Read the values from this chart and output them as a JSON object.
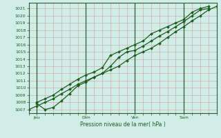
{
  "xlabel": "Pression niveau de la mer( hPa )",
  "ylim": [
    1006.5,
    1021.8
  ],
  "yticks": [
    1007,
    1008,
    1009,
    1010,
    1011,
    1012,
    1013,
    1014,
    1015,
    1016,
    1017,
    1018,
    1019,
    1020,
    1021
  ],
  "bg_color": "#d0ede8",
  "grid_color": "#c8a0a0",
  "line_color": "#1a5c1a",
  "xtick_labels": [
    "Jeu",
    "Dim",
    "Ven",
    "Sam"
  ],
  "xtick_positions": [
    0.5,
    3.5,
    6.5,
    9.5
  ],
  "xmin": 0.0,
  "xmax": 11.5,
  "vline_positions": [
    0.5,
    3.5,
    6.5,
    9.5
  ],
  "line1_x": [
    0.0,
    0.5,
    1.0,
    1.5,
    2.0,
    2.5,
    3.0,
    3.5,
    4.0,
    4.5,
    5.0,
    5.5,
    6.0,
    6.5,
    7.0,
    7.5,
    8.0,
    8.5,
    9.0,
    9.5,
    10.0,
    10.5,
    11.0,
    11.5
  ],
  "line1_y": [
    1007.0,
    1007.5,
    1008.0,
    1008.5,
    1009.2,
    1009.8,
    1010.5,
    1011.0,
    1011.5,
    1012.0,
    1012.5,
    1013.0,
    1013.8,
    1014.5,
    1015.0,
    1015.5,
    1016.2,
    1017.0,
    1017.8,
    1018.5,
    1019.3,
    1020.0,
    1020.8,
    1021.3
  ],
  "line2_x": [
    0.5,
    1.0,
    1.5,
    2.0,
    2.5,
    3.0,
    3.5,
    4.0,
    4.5,
    5.0,
    5.5,
    6.0,
    6.5,
    7.0,
    7.5,
    8.0,
    8.5,
    9.0,
    9.5,
    10.0,
    10.5,
    11.0
  ],
  "line2_y": [
    1007.8,
    1007.0,
    1007.3,
    1008.2,
    1009.2,
    1010.3,
    1010.8,
    1011.5,
    1012.0,
    1013.0,
    1014.2,
    1015.0,
    1015.2,
    1015.8,
    1016.5,
    1017.2,
    1017.8,
    1018.5,
    1019.2,
    1020.0,
    1020.8,
    1021.0
  ],
  "line3_x": [
    0.5,
    1.0,
    1.5,
    2.0,
    2.5,
    3.0,
    3.5,
    4.0,
    4.5,
    5.0,
    5.5,
    6.0,
    6.5,
    7.0,
    7.5,
    8.0,
    8.5,
    9.0,
    9.5,
    10.0,
    10.5,
    11.0
  ],
  "line3_y": [
    1008.0,
    1008.5,
    1009.0,
    1009.8,
    1010.5,
    1011.2,
    1011.8,
    1012.2,
    1012.8,
    1014.5,
    1015.0,
    1015.5,
    1016.0,
    1016.5,
    1017.5,
    1018.0,
    1018.5,
    1019.0,
    1019.5,
    1020.5,
    1021.0,
    1021.3
  ]
}
